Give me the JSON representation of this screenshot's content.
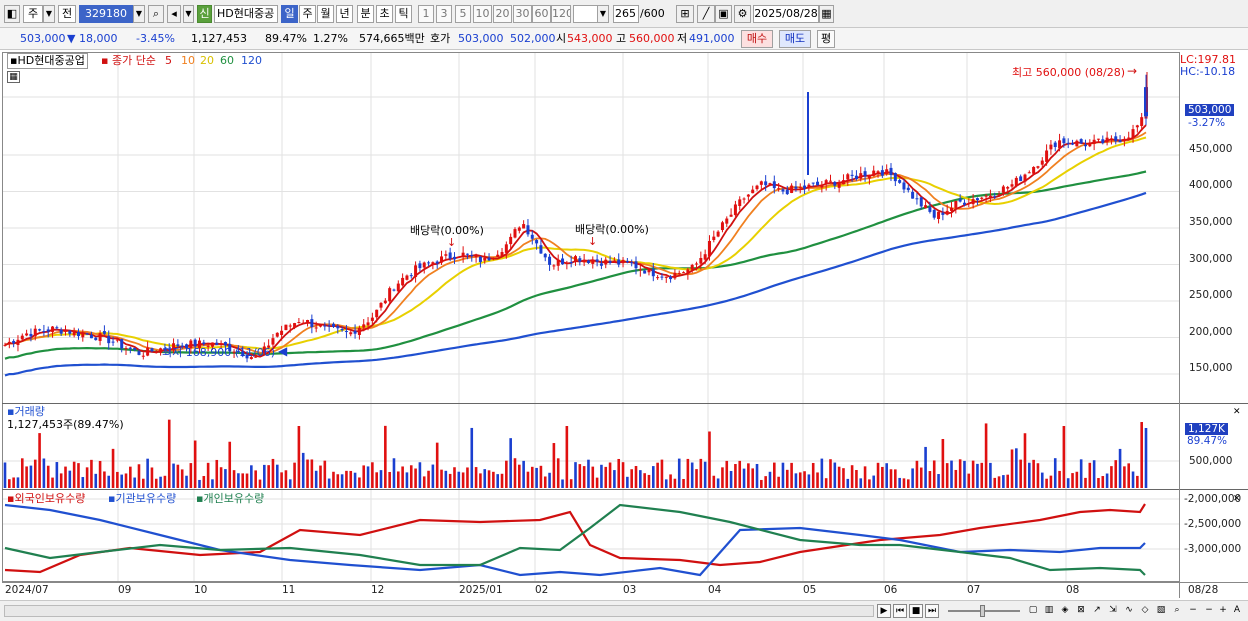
{
  "toolbar": {
    "market": "주",
    "prefix": "전",
    "code": "329180",
    "stock_name": "HD현대중공",
    "sin": "신",
    "periods": [
      "일",
      "주",
      "월",
      "년",
      "분",
      "초",
      "틱"
    ],
    "active_period": "일",
    "steps": [
      "1",
      "3",
      "5",
      "10",
      "20",
      "30",
      "60",
      "120"
    ],
    "count": "265",
    "count_max": "/600",
    "date": "2025/08/28"
  },
  "quote": {
    "price": "503,000",
    "change": "▼  18,000",
    "change_pct": "-3.45%",
    "volume": "1,127,453",
    "vol_ratio": "89.47%",
    "turnover_pct": "1.27%",
    "amount": "574,665백만",
    "hoga_label": "호가",
    "ask": "503,000",
    "bid": "502,000",
    "open_label": "시",
    "open": "543,000",
    "high_label": "고",
    "high": "560,000",
    "low_label": "저",
    "low": "491,000",
    "buy_btn": "매수",
    "sell_btn": "매도",
    "eval_btn": "평"
  },
  "price_pane": {
    "legend_name": "HD현대중공업",
    "legend_ma_title": "종가 단순",
    "legend_periods": [
      {
        "label": "5",
        "color": "#d01010"
      },
      {
        "label": "10",
        "color": "#f08020"
      },
      {
        "label": "20",
        "color": "#e8d000"
      },
      {
        "label": "60",
        "color": "#209040"
      },
      {
        "label": "120",
        "color": "#2050d0"
      }
    ],
    "lc": "LC:197.81",
    "hc": "HC:-10.18",
    "current_tag": "503,000",
    "current_pct": "-3.27%",
    "high_note": "최고 560,000 (08/28)",
    "low_note": "최저 168,900 (11/06)",
    "dividend_1": "배당락(0.00%)",
    "dividend_2": "배당락(0.00%)",
    "y_ticks": [
      "450,000",
      "400,000",
      "350,000",
      "300,000",
      "250,000",
      "200,000",
      "150,000"
    ]
  },
  "volume_pane": {
    "title": "거래량",
    "value": "1,127,453주(89.47%)",
    "tag": "1,127K",
    "tag_pct": "89.47%",
    "y_tick": "500,000"
  },
  "holding_pane": {
    "legend": [
      {
        "label": "외국인보유수량",
        "color": "#d01010"
      },
      {
        "label": "기관보유수량",
        "color": "#2050d0"
      },
      {
        "label": "개인보유수량",
        "color": "#208050"
      }
    ],
    "y_ticks": [
      "-2,000,000",
      "-2,500,000",
      "-3,000,000"
    ]
  },
  "x_axis": [
    "2024/07",
    "09",
    "10",
    "11",
    "12",
    "2025/01",
    "02",
    "03",
    "04",
    "05",
    "06",
    "07",
    "08",
    "08/28"
  ],
  "colors": {
    "up": "#e01010",
    "down": "#1a3fd0",
    "ma5": "#d01010",
    "ma10": "#f08020",
    "ma20": "#e8d000",
    "ma60": "#209040",
    "ma120": "#2050d0"
  }
}
